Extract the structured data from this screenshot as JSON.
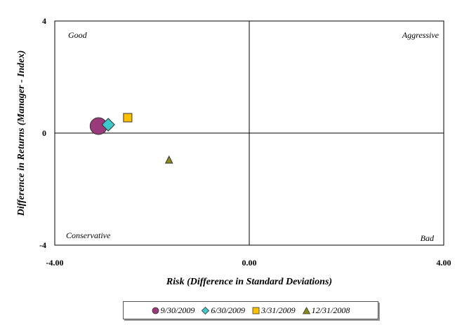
{
  "chart_data": {
    "type": "scatter",
    "xlabel": "Risk (Difference in Standard Deviations)",
    "ylabel": "Difference in Returns (Manager - Index)",
    "xlim": [
      -4,
      4
    ],
    "ylim": [
      -4,
      4
    ],
    "x_ticks": [
      "-4.00",
      "0.00",
      "4.00"
    ],
    "y_ticks": [
      "4",
      "0",
      "-4"
    ],
    "quadrant_labels": {
      "top_left": "Good",
      "top_right": "Aggressive",
      "bottom_left": "Conservative",
      "bottom_right": "Bad"
    },
    "grid": false,
    "legend_position": "bottom",
    "series": [
      {
        "name": "9/30/2009",
        "x": -3.1,
        "y": 0.25,
        "marker": "circle",
        "color": "#9B3A7A"
      },
      {
        "name": "6/30/2009",
        "x": -2.9,
        "y": 0.3,
        "marker": "diamond",
        "color": "#3CC8CC"
      },
      {
        "name": "3/31/2009",
        "x": -2.5,
        "y": 0.55,
        "marker": "square",
        "color": "#FFC000"
      },
      {
        "name": "12/31/2008",
        "x": -1.65,
        "y": -0.95,
        "marker": "triangle",
        "color": "#8A8A1A"
      }
    ]
  }
}
